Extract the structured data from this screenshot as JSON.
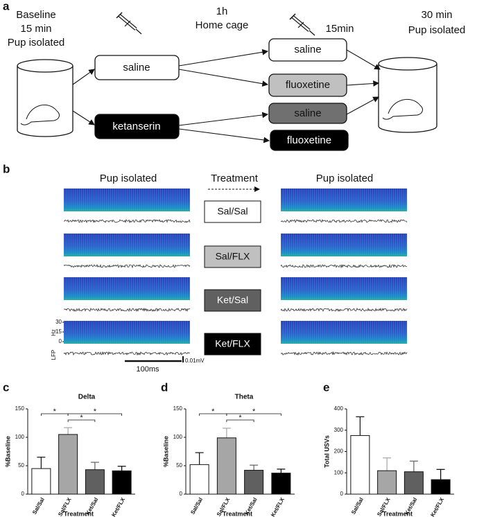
{
  "panel_a": {
    "label": "a",
    "baseline": [
      "Baseline",
      "15 min",
      "Pup isolated"
    ],
    "middle": [
      "1h",
      "Home cage"
    ],
    "second_wait": "15min",
    "end": [
      "30 min",
      "Pup isolated"
    ],
    "first_injection": [
      "saline",
      "ketanserin"
    ],
    "second_injection": [
      "saline",
      "fluoxetine",
      "saline",
      "fluoxetine"
    ]
  },
  "panel_b": {
    "label": "b",
    "before": "Pup isolated",
    "treatment": "Treatment",
    "after": "Pup isolated",
    "groups": [
      "Sal/Sal",
      "Sal/FLX",
      "Ket/Sal",
      "Ket/FLX"
    ],
    "group_colors": [
      "#ffffff",
      "#c0c0c0",
      "#606060",
      "#000000"
    ],
    "freq_axis": "Hz",
    "freq_ticks": [
      30,
      15,
      0
    ],
    "trace_label": "LFP",
    "time_scale": "100ms",
    "voltage_scale": "0.01mV"
  },
  "chart_data": [
    {
      "type": "bar",
      "panel": "c",
      "title": "Delta",
      "ylabel": "%Baseline",
      "xlabel": "Treatment",
      "categories": [
        "Sal/Sal",
        "Sal/FLX",
        "Ket/Sal",
        "Ket/FLX"
      ],
      "values": [
        45,
        105,
        43,
        41
      ],
      "errors": [
        20,
        12,
        13,
        8
      ],
      "colors": [
        "#ffffff",
        "#a6a6a6",
        "#606060",
        "#000000"
      ],
      "ylim": [
        0,
        150
      ],
      "yticks": [
        0,
        50,
        100,
        150
      ],
      "significance": [
        "*",
        "*",
        "*"
      ]
    },
    {
      "type": "bar",
      "panel": "d",
      "title": "Theta",
      "ylabel": "%Baseline",
      "xlabel": "Treatment",
      "categories": [
        "Sal/Sal",
        "Sal/FLX",
        "Ket/Sal",
        "Ket/FLX"
      ],
      "values": [
        52,
        99,
        42,
        37
      ],
      "errors": [
        21,
        17,
        9,
        7
      ],
      "colors": [
        "#ffffff",
        "#a6a6a6",
        "#606060",
        "#000000"
      ],
      "ylim": [
        0,
        150
      ],
      "yticks": [
        0,
        50,
        100,
        150
      ],
      "significance": [
        "*",
        "*",
        "*"
      ]
    },
    {
      "type": "bar",
      "panel": "e",
      "ylabel": "Total USVs",
      "xlabel": "Treatment",
      "categories": [
        "Sal/Sal",
        "Sal/FLX",
        "Ket/Sal",
        "Ket/FLX"
      ],
      "values": [
        275,
        110,
        105,
        68
      ],
      "errors": [
        88,
        60,
        50,
        48
      ],
      "colors": [
        "#ffffff",
        "#a6a6a6",
        "#606060",
        "#000000"
      ],
      "ylim": [
        0,
        400
      ],
      "yticks": [
        0,
        100,
        200,
        300,
        400
      ]
    }
  ]
}
